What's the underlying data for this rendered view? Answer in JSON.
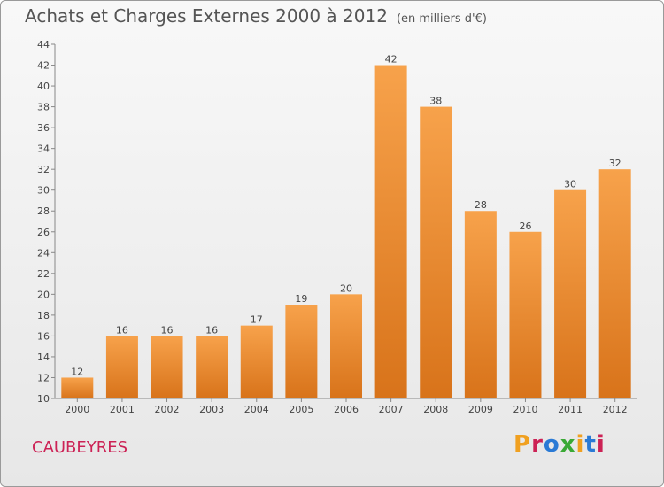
{
  "header": {
    "title": "Achats et Charges Externes 2000 à 2012",
    "unit": "(en milliers d'€)"
  },
  "footer": {
    "commune": "CAUBEYRES",
    "logo_text": "Proxiti",
    "logo_colors": [
      "#f0a020",
      "#cc2255",
      "#2a7ad5",
      "#3aa935",
      "#f0a020",
      "#2a7ad5",
      "#cc2255"
    ]
  },
  "chart_data": {
    "type": "bar",
    "title": "Achats et Charges Externes 2000 à 2012",
    "subtitle": "(en milliers d'€)",
    "xlabel": "",
    "ylabel": "",
    "categories": [
      "2000",
      "2001",
      "2002",
      "2003",
      "2004",
      "2005",
      "2006",
      "2007",
      "2008",
      "2009",
      "2010",
      "2011",
      "2012"
    ],
    "values": [
      12,
      16,
      16,
      16,
      17,
      19,
      20,
      42,
      38,
      28,
      26,
      30,
      32
    ],
    "ylim": [
      10,
      44
    ],
    "yticks": [
      10,
      12,
      14,
      16,
      18,
      20,
      22,
      24,
      26,
      28,
      30,
      32,
      34,
      36,
      38,
      40,
      42,
      44
    ],
    "grid": false,
    "bar_color": "#f08a24"
  }
}
